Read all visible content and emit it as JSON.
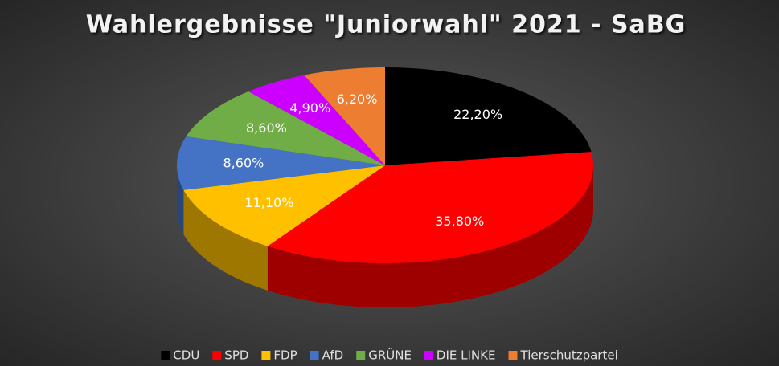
{
  "chart_data": {
    "type": "pie",
    "title": "Wahlergebnisse \"Juniorwahl\" 2021 - SaBG",
    "categories": [
      "CDU",
      "SPD",
      "FDP",
      "AfD",
      "GRÜNE",
      "DIE LINKE",
      "Tierschutzpartei"
    ],
    "values": [
      22.2,
      35.8,
      11.1,
      8.6,
      8.6,
      4.9,
      6.2
    ],
    "value_labels": [
      "22,20%",
      "35,80%",
      "11,10%",
      "8,60%",
      "8,60%",
      "4,90%",
      "6,20%"
    ],
    "colors": [
      "#000000",
      "#ff0000",
      "#ffc000",
      "#4472c4",
      "#70ad47",
      "#cc00ff",
      "#ed7d31"
    ],
    "legend": "bottom"
  }
}
